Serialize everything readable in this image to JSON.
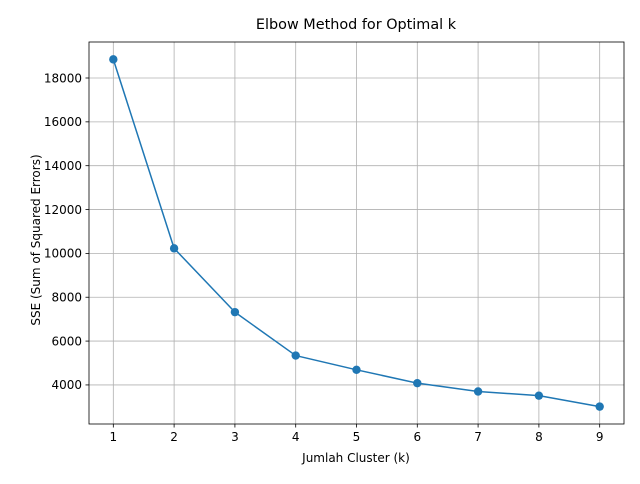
{
  "chart_data": {
    "type": "line",
    "title": "Elbow Method for Optimal k",
    "xlabel": "Jumlah Cluster (k)",
    "ylabel": "SSE (Sum of Squared Errors)",
    "x": [
      1,
      2,
      3,
      4,
      5,
      6,
      7,
      8,
      9
    ],
    "series": [
      {
        "values": [
          18850,
          10230,
          7320,
          5340,
          4690,
          4080,
          3700,
          3510,
          3010
        ]
      }
    ],
    "xticks": [
      "1",
      "2",
      "3",
      "4",
      "5",
      "6",
      "7",
      "8",
      "9"
    ],
    "yticks": [
      4000,
      6000,
      8000,
      10000,
      12000,
      14000,
      16000,
      18000
    ],
    "ytick_labels": [
      "4000",
      "6000",
      "8000",
      "10000",
      "12000",
      "14000",
      "16000",
      "18000"
    ],
    "xlim": [
      0.6,
      9.4
    ],
    "ylim": [
      2218,
      19642
    ],
    "grid": true,
    "marker": "circle",
    "line_color": "#1f77b4"
  }
}
